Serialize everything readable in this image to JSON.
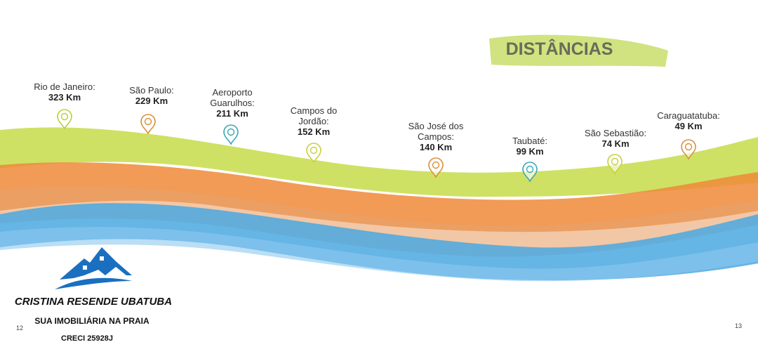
{
  "title": "DISTÂNCIAS",
  "locations": [
    {
      "name_lines": [
        "Rio de Janeiro:"
      ],
      "distance": "323 Km"
    },
    {
      "name_lines": [
        "São Paulo:"
      ],
      "distance": "229 Km"
    },
    {
      "name_lines": [
        "Aeroporto",
        "Guarulhos:"
      ],
      "distance": "211 Km"
    },
    {
      "name_lines": [
        "Campos do",
        "Jordão:"
      ],
      "distance": "152 Km"
    },
    {
      "name_lines": [
        "São José dos",
        "Campos:"
      ],
      "distance": "140 Km"
    },
    {
      "name_lines": [
        "Taubaté:"
      ],
      "distance": "99 Km"
    },
    {
      "name_lines": [
        "São Sebastião:"
      ],
      "distance": "74 Km"
    },
    {
      "name_lines": [
        "Caraguatatuba:"
      ],
      "distance": "49 Km"
    }
  ],
  "logo": {
    "name": "CRISTINA RESENDE UBATUBA",
    "tagline": "SUA IMOBILIÁRIA NA PRAIA",
    "creci": "CRECI 25928J"
  },
  "pages": {
    "left": "12",
    "right": "13"
  }
}
